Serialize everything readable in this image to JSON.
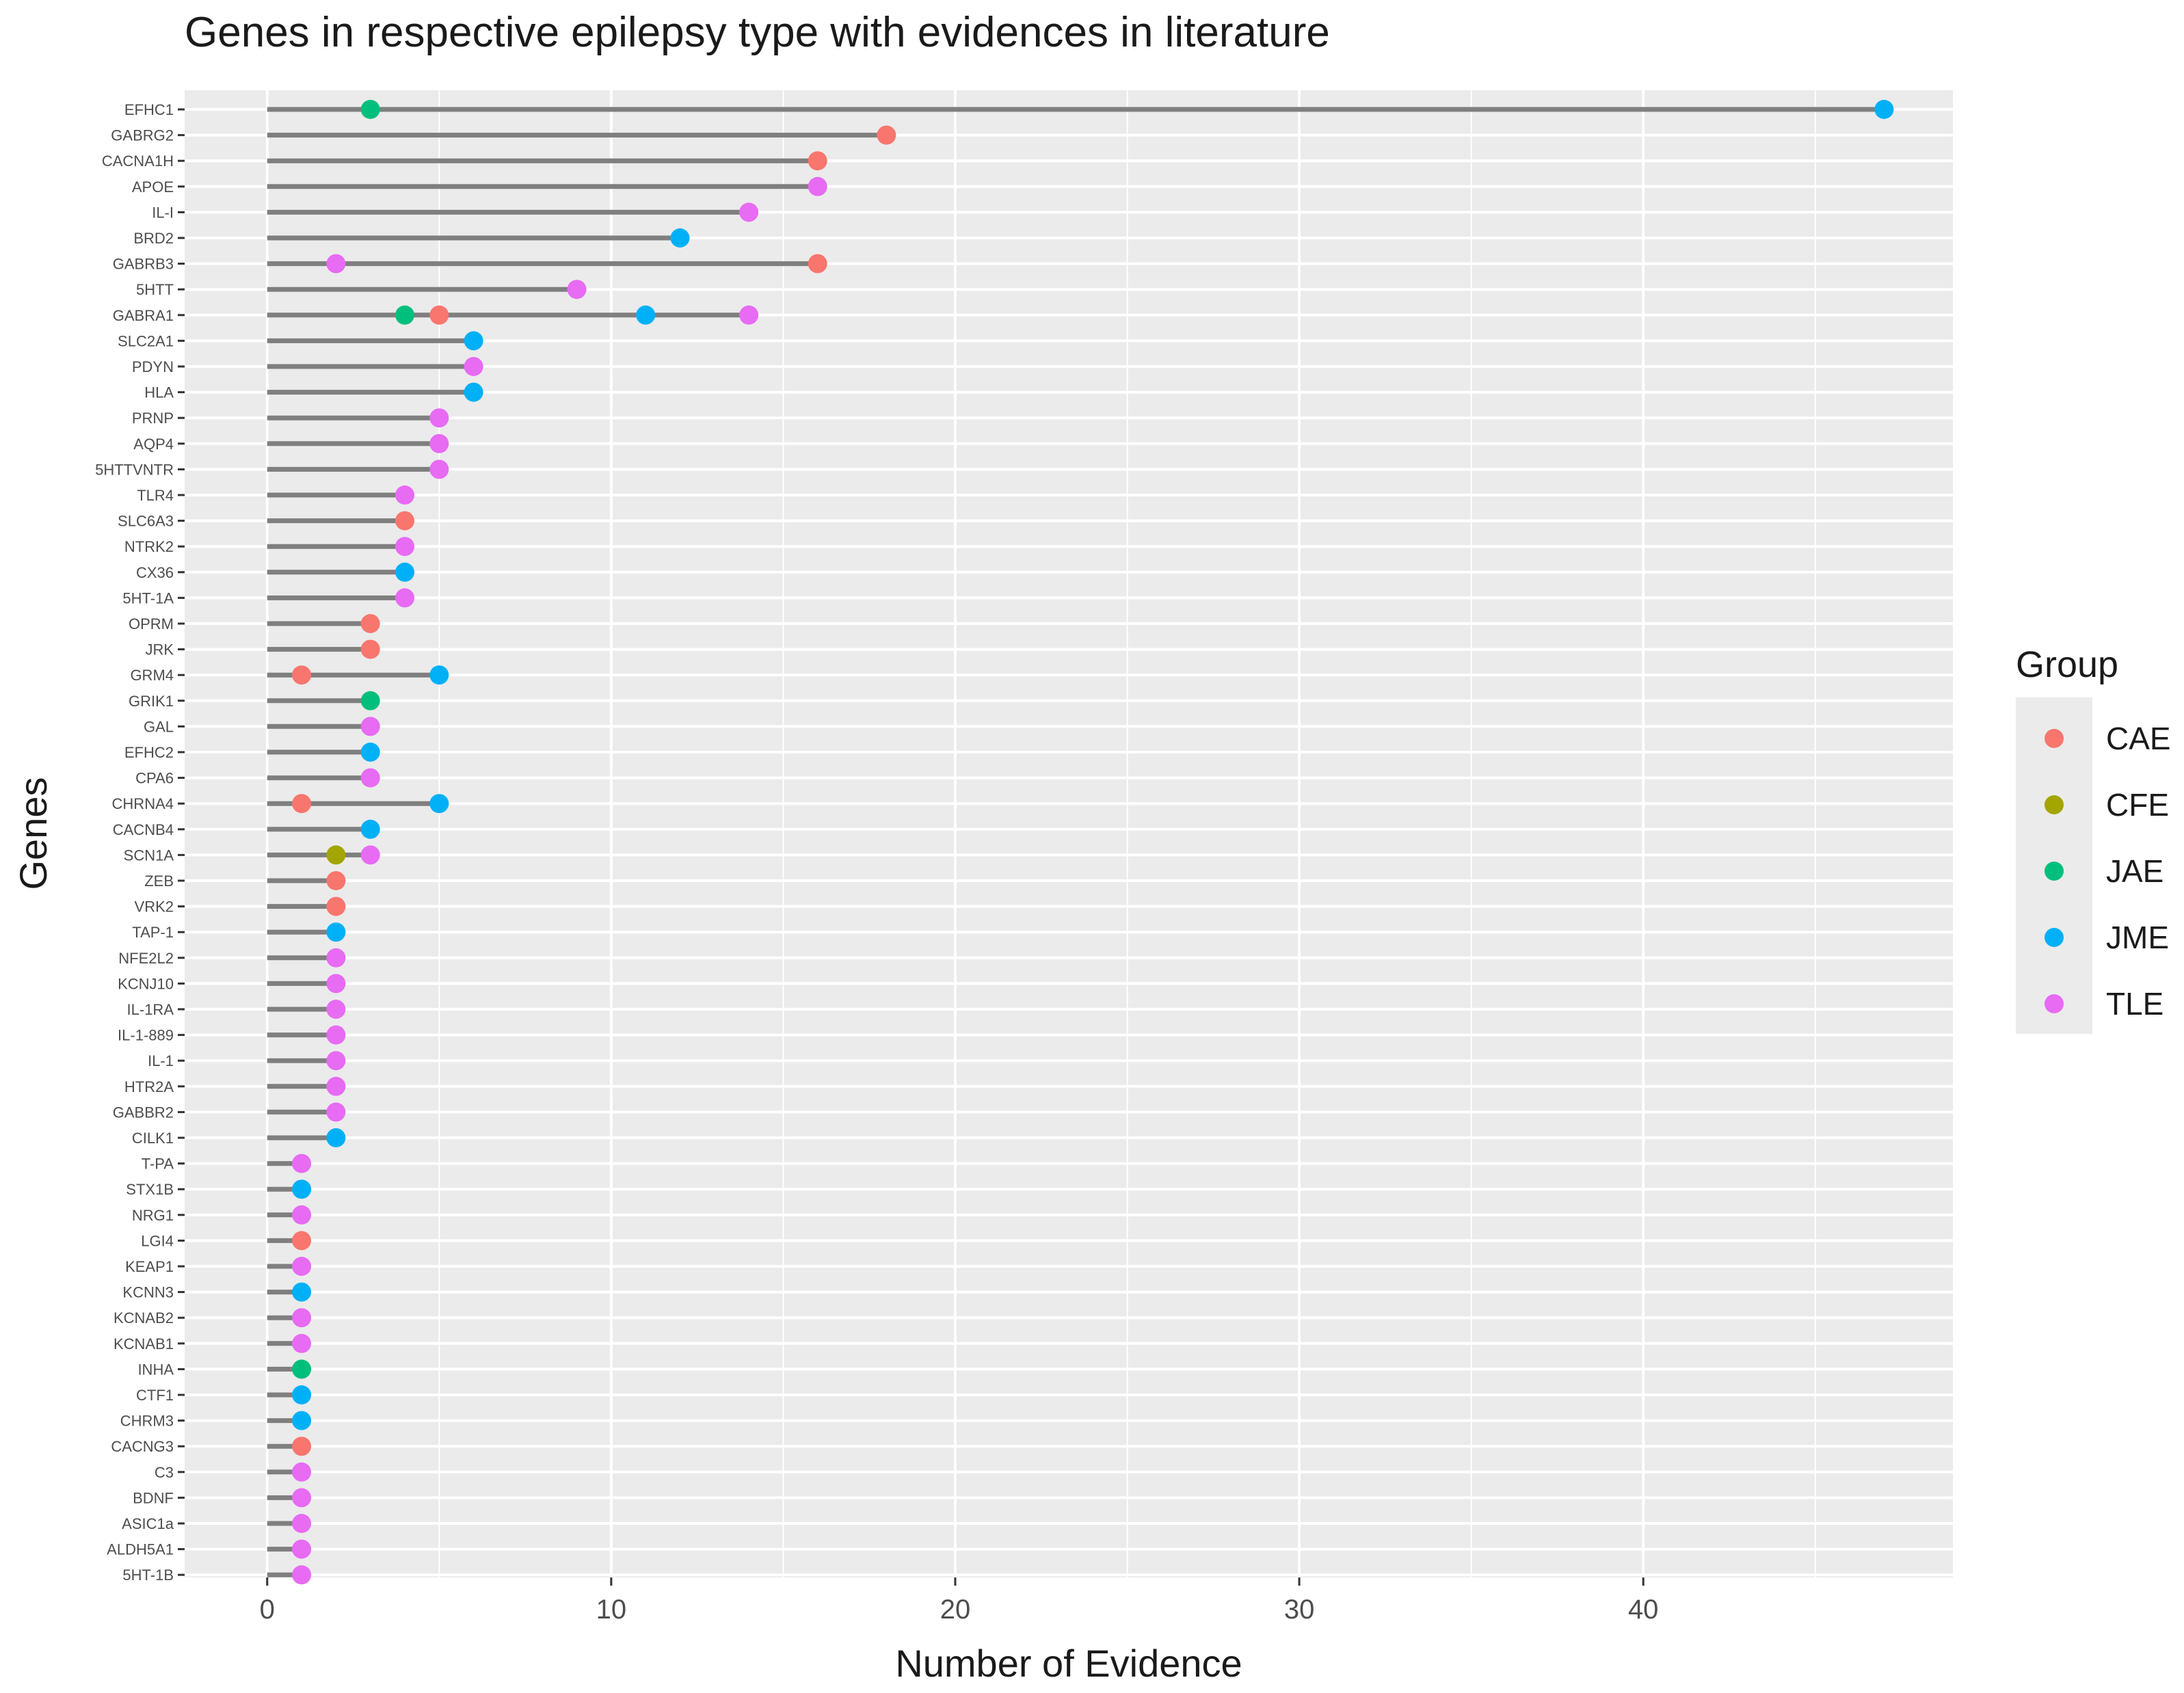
{
  "chart_data": {
    "type": "lollipop",
    "title": "Genes in respective epilepsy type with evidences in literature",
    "xlabel": "Number of Evidence",
    "ylabel": "Genes",
    "xlim": [
      -2.4,
      49
    ],
    "x_ticks": [
      0,
      10,
      20,
      30,
      40
    ],
    "grid": true,
    "legend": {
      "title": "Group",
      "position": "right",
      "items": [
        {
          "name": "CAE",
          "color": "#F8766D"
        },
        {
          "name": "CFE",
          "color": "#A3A500"
        },
        {
          "name": "JAE",
          "color": "#00BF7D"
        },
        {
          "name": "JME",
          "color": "#00B0F6"
        },
        {
          "name": "TLE",
          "color": "#E76BF3"
        }
      ]
    },
    "genes": [
      {
        "label": "EFHC1",
        "points": [
          {
            "group": "JAE",
            "value": 3
          },
          {
            "group": "JME",
            "value": 47
          }
        ]
      },
      {
        "label": "GABRG2",
        "points": [
          {
            "group": "CAE",
            "value": 18
          }
        ]
      },
      {
        "label": "CACNA1H",
        "points": [
          {
            "group": "CAE",
            "value": 16
          }
        ]
      },
      {
        "label": "APOE",
        "points": [
          {
            "group": "TLE",
            "value": 16
          }
        ]
      },
      {
        "label": "IL-I",
        "points": [
          {
            "group": "TLE",
            "value": 14
          }
        ]
      },
      {
        "label": "BRD2",
        "points": [
          {
            "group": "JME",
            "value": 12
          }
        ]
      },
      {
        "label": "GABRB3",
        "points": [
          {
            "group": "TLE",
            "value": 2
          },
          {
            "group": "CAE",
            "value": 16
          }
        ]
      },
      {
        "label": "5HTT",
        "points": [
          {
            "group": "TLE",
            "value": 9
          }
        ]
      },
      {
        "label": "GABRA1",
        "points": [
          {
            "group": "JAE",
            "value": 4
          },
          {
            "group": "CAE",
            "value": 5
          },
          {
            "group": "JME",
            "value": 11
          },
          {
            "group": "TLE",
            "value": 14
          }
        ]
      },
      {
        "label": "SLC2A1",
        "points": [
          {
            "group": "JME",
            "value": 6
          }
        ]
      },
      {
        "label": "PDYN",
        "points": [
          {
            "group": "TLE",
            "value": 6
          }
        ]
      },
      {
        "label": "HLA",
        "points": [
          {
            "group": "JME",
            "value": 6
          }
        ]
      },
      {
        "label": "PRNP",
        "points": [
          {
            "group": "TLE",
            "value": 5
          }
        ]
      },
      {
        "label": "AQP4",
        "points": [
          {
            "group": "TLE",
            "value": 5
          }
        ]
      },
      {
        "label": "5HTTVNTR",
        "points": [
          {
            "group": "TLE",
            "value": 5
          }
        ]
      },
      {
        "label": "TLR4",
        "points": [
          {
            "group": "TLE",
            "value": 4
          }
        ]
      },
      {
        "label": "SLC6A3",
        "points": [
          {
            "group": "CAE",
            "value": 4
          }
        ]
      },
      {
        "label": "NTRK2",
        "points": [
          {
            "group": "TLE",
            "value": 4
          }
        ]
      },
      {
        "label": "CX36",
        "points": [
          {
            "group": "JME",
            "value": 4
          }
        ]
      },
      {
        "label": "5HT-1A",
        "points": [
          {
            "group": "TLE",
            "value": 4
          }
        ]
      },
      {
        "label": "OPRM",
        "points": [
          {
            "group": "CAE",
            "value": 3
          }
        ]
      },
      {
        "label": "JRK",
        "points": [
          {
            "group": "CAE",
            "value": 3
          }
        ]
      },
      {
        "label": "GRM4",
        "points": [
          {
            "group": "CAE",
            "value": 1
          },
          {
            "group": "JME",
            "value": 5
          }
        ]
      },
      {
        "label": "GRIK1",
        "points": [
          {
            "group": "JAE",
            "value": 3
          }
        ]
      },
      {
        "label": "GAL",
        "points": [
          {
            "group": "TLE",
            "value": 3
          }
        ]
      },
      {
        "label": "EFHC2",
        "points": [
          {
            "group": "JME",
            "value": 3
          }
        ]
      },
      {
        "label": "CPA6",
        "points": [
          {
            "group": "TLE",
            "value": 3
          }
        ]
      },
      {
        "label": "CHRNA4",
        "points": [
          {
            "group": "CAE",
            "value": 1
          },
          {
            "group": "JME",
            "value": 5
          }
        ]
      },
      {
        "label": "CACNB4",
        "points": [
          {
            "group": "JME",
            "value": 3
          }
        ]
      },
      {
        "label": "SCN1A",
        "points": [
          {
            "group": "CFE",
            "value": 2
          },
          {
            "group": "TLE",
            "value": 3
          }
        ]
      },
      {
        "label": "ZEB",
        "points": [
          {
            "group": "CAE",
            "value": 2
          }
        ]
      },
      {
        "label": "VRK2",
        "points": [
          {
            "group": "CAE",
            "value": 2
          }
        ]
      },
      {
        "label": "TAP-1",
        "points": [
          {
            "group": "JME",
            "value": 2
          }
        ]
      },
      {
        "label": "NFE2L2",
        "points": [
          {
            "group": "TLE",
            "value": 2
          }
        ]
      },
      {
        "label": "KCNJ10",
        "points": [
          {
            "group": "TLE",
            "value": 2
          }
        ]
      },
      {
        "label": "IL-1RA",
        "points": [
          {
            "group": "TLE",
            "value": 2
          }
        ]
      },
      {
        "label": "IL-1-889",
        "points": [
          {
            "group": "TLE",
            "value": 2
          }
        ]
      },
      {
        "label": "IL-1",
        "points": [
          {
            "group": "TLE",
            "value": 2
          }
        ]
      },
      {
        "label": "HTR2A",
        "points": [
          {
            "group": "TLE",
            "value": 2
          }
        ]
      },
      {
        "label": "GABBR2",
        "points": [
          {
            "group": "TLE",
            "value": 2
          }
        ]
      },
      {
        "label": "CILK1",
        "points": [
          {
            "group": "JME",
            "value": 2
          }
        ]
      },
      {
        "label": "T-PA",
        "points": [
          {
            "group": "TLE",
            "value": 1
          }
        ]
      },
      {
        "label": "STX1B",
        "points": [
          {
            "group": "JME",
            "value": 1
          }
        ]
      },
      {
        "label": "NRG1",
        "points": [
          {
            "group": "TLE",
            "value": 1
          }
        ]
      },
      {
        "label": "LGI4",
        "points": [
          {
            "group": "CAE",
            "value": 1
          }
        ]
      },
      {
        "label": "KEAP1",
        "points": [
          {
            "group": "TLE",
            "value": 1
          }
        ]
      },
      {
        "label": "KCNN3",
        "points": [
          {
            "group": "JME",
            "value": 1
          }
        ]
      },
      {
        "label": "KCNAB2",
        "points": [
          {
            "group": "TLE",
            "value": 1
          }
        ]
      },
      {
        "label": "KCNAB1",
        "points": [
          {
            "group": "TLE",
            "value": 1
          }
        ]
      },
      {
        "label": "INHA",
        "points": [
          {
            "group": "JAE",
            "value": 1
          }
        ]
      },
      {
        "label": "CTF1",
        "points": [
          {
            "group": "JME",
            "value": 1
          }
        ]
      },
      {
        "label": "CHRM3",
        "points": [
          {
            "group": "JME",
            "value": 1
          }
        ]
      },
      {
        "label": "CACNG3",
        "points": [
          {
            "group": "CAE",
            "value": 1
          }
        ]
      },
      {
        "label": "C3",
        "points": [
          {
            "group": "TLE",
            "value": 1
          }
        ]
      },
      {
        "label": "BDNF",
        "points": [
          {
            "group": "TLE",
            "value": 1
          }
        ]
      },
      {
        "label": "ASIC1a",
        "points": [
          {
            "group": "TLE",
            "value": 1
          }
        ]
      },
      {
        "label": "ALDH5A1",
        "points": [
          {
            "group": "TLE",
            "value": 1
          }
        ]
      },
      {
        "label": "5HT-1B",
        "points": [
          {
            "group": "TLE",
            "value": 1
          }
        ]
      }
    ]
  }
}
